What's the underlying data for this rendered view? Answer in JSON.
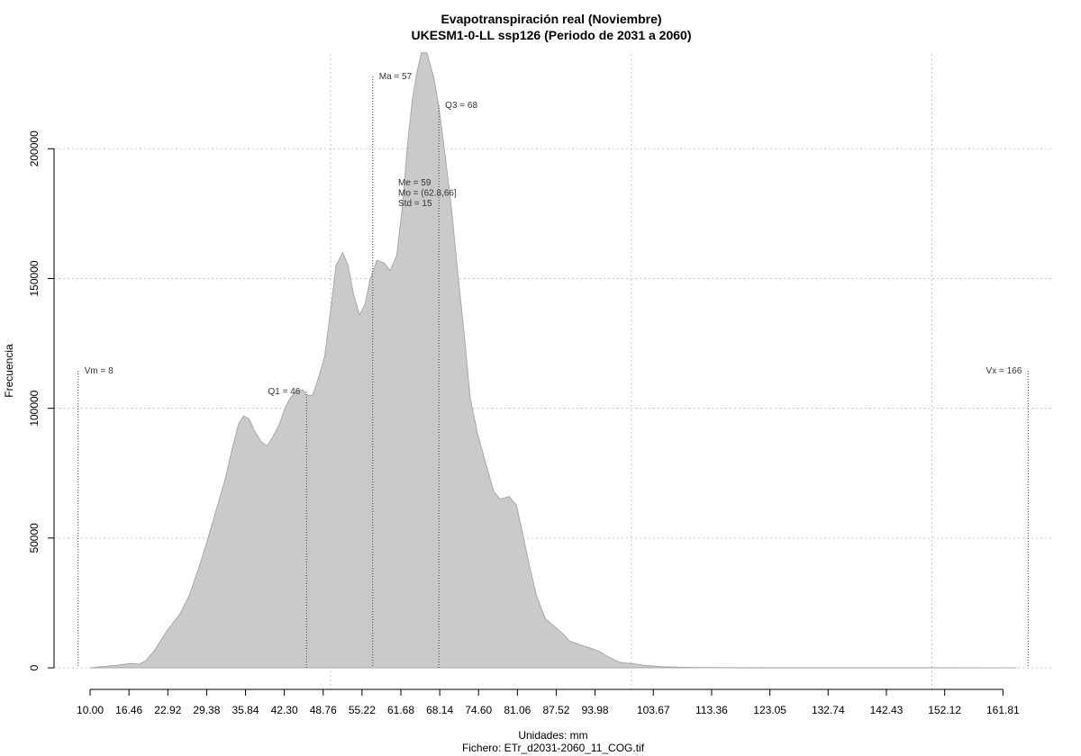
{
  "chart_data": {
    "type": "area",
    "title": "Evapotranspiración real (Noviembre)",
    "subtitle": "UKESM1-0-LL ssp126 (Periodo de 2031 a 2060)",
    "x_label": "Unidades: mm",
    "caption": "Fichero: ETr_d2031-2060_11_COG.tif",
    "y_label": "Frecuencia",
    "color": "#cacaca",
    "line_color": "#a8a8a8",
    "grid": true,
    "x": [
      10,
      14.5,
      16.7,
      18.2,
      19.3,
      20.8,
      22.7,
      25,
      26.5,
      28,
      29.5,
      31,
      32.5,
      33.7,
      34.7,
      35.5,
      36.4,
      37.4,
      38.5,
      39.4,
      40.4,
      41.5,
      42.4,
      43.3,
      44.5,
      45.4,
      46.1,
      47,
      47.9,
      49,
      49.9,
      50.9,
      52,
      52.9,
      53.8,
      54.8,
      55.7,
      56.6,
      57.7,
      58.9,
      59.9,
      61,
      61.9,
      62.8,
      63.6,
      64.4,
      65.1,
      66,
      67.1,
      68,
      69,
      70.1,
      71.1,
      72.2,
      73.2,
      74.4,
      75.9,
      77.1,
      78.2,
      79.7,
      80.9,
      81.9,
      83,
      84.2,
      85.7,
      87.2,
      88.7,
      89.7,
      91.7,
      93.2,
      94.7,
      96.2,
      98.1,
      99.9,
      102.2,
      105.2,
      111.2,
      164
    ],
    "values": [
      0,
      1000,
      1700,
      1400,
      2800,
      7000,
      14000,
      21000,
      28000,
      38000,
      49000,
      61000,
      73000,
      85000,
      94000,
      97000,
      96000,
      91000,
      87000,
      85500,
      89000,
      94000,
      100000,
      104000,
      107000,
      107000,
      105000,
      105000,
      111000,
      120000,
      136000,
      155000,
      160000,
      155000,
      144000,
      136000,
      140000,
      150000,
      157000,
      156000,
      153000,
      159000,
      177000,
      202000,
      219000,
      230000,
      237000,
      237000,
      228000,
      216000,
      198000,
      177000,
      153000,
      129000,
      104000,
      90500,
      78000,
      68000,
      65000,
      66000,
      62600,
      52000,
      40000,
      28000,
      19000,
      16000,
      13000,
      10400,
      8700,
      7600,
      6300,
      4200,
      2100,
      1700,
      1000,
      400,
      100,
      0
    ],
    "xlim": [
      4,
      170
    ],
    "ylim": [
      -9000,
      236500
    ],
    "xticks": [
      {
        "value": 10,
        "label": "10.00"
      },
      16.46,
      22.92,
      29.38,
      35.84,
      {
        "value": 42.3,
        "label": "42.30"
      },
      48.76,
      55.22,
      61.68,
      68.14,
      {
        "value": 74.6,
        "label": "74.60"
      },
      81.06,
      87.52,
      93.98,
      103.67,
      113.36,
      123.05,
      132.74,
      142.43,
      152.12,
      161.81
    ],
    "yticks": [
      0,
      50000,
      100000,
      150000,
      200000
    ],
    "xgrid": [
      50,
      100,
      150
    ],
    "markers": [
      {
        "text": "Vm = 8",
        "x": 8
      },
      {
        "text": "Q1 = 46",
        "x": 46
      },
      {
        "text": "Ma = 57",
        "x": 57
      },
      {
        "text": "Q3 = 68",
        "x": 68
      },
      {
        "text": "Vx = 166",
        "x": 166
      }
    ],
    "stats": [
      "Me = 59",
      "Mo = (62.8,66]",
      "Std = 15"
    ]
  }
}
